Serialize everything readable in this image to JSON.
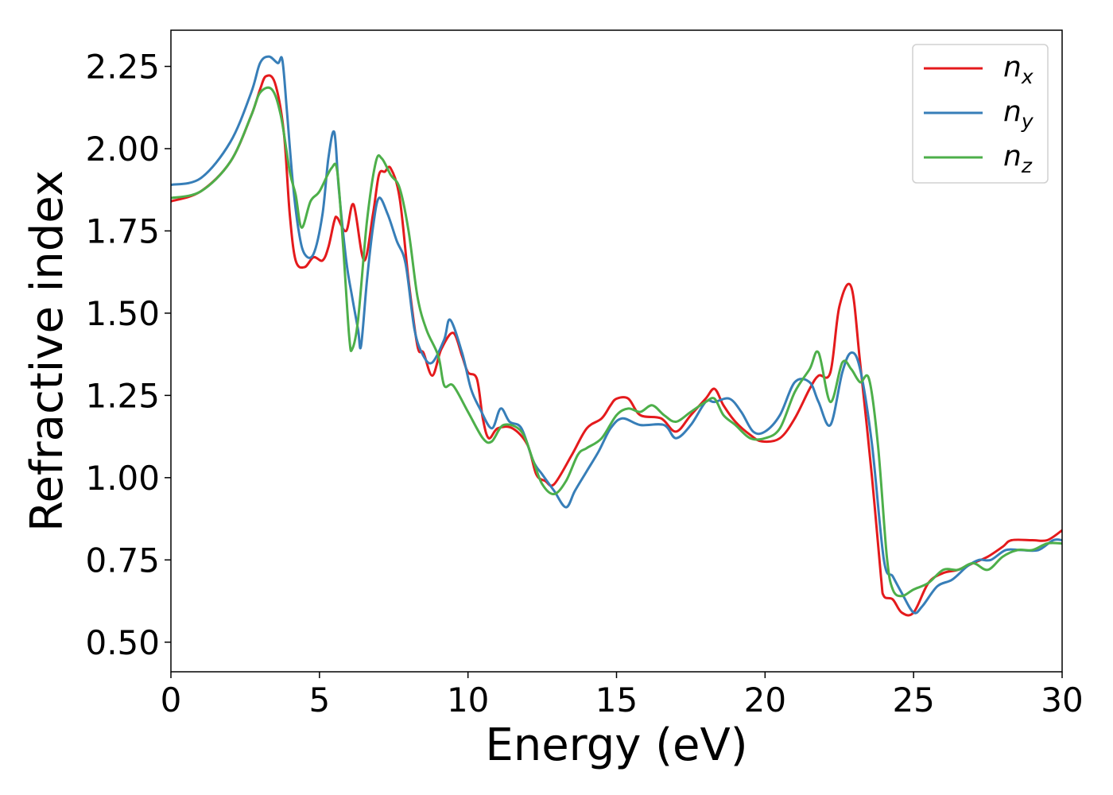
{
  "chart_data": {
    "type": "line",
    "xlabel": "Energy (eV)",
    "ylabel": "Refractive index",
    "xlim": [
      0,
      30
    ],
    "ylim": [
      0.41,
      2.36
    ],
    "xticks": [
      0,
      5,
      10,
      15,
      20,
      25,
      30
    ],
    "yticks": [
      0.5,
      0.75,
      1.0,
      1.25,
      1.5,
      1.75,
      2.0,
      2.25
    ],
    "ytick_labels": [
      "0.50",
      "0.75",
      "1.00",
      "1.25",
      "1.50",
      "1.75",
      "2.00",
      "2.25"
    ],
    "grid": false,
    "legend": {
      "position": "top-right",
      "entries": [
        {
          "base": "n",
          "sub": "x"
        },
        {
          "base": "n",
          "sub": "y"
        },
        {
          "base": "n",
          "sub": "z"
        }
      ]
    },
    "series": [
      {
        "color": "#e41a1c",
        "points": [
          [
            0,
            1.84
          ],
          [
            1,
            1.87
          ],
          [
            2,
            1.96
          ],
          [
            2.7,
            2.1
          ],
          [
            3,
            2.18
          ],
          [
            3.2,
            2.22
          ],
          [
            3.5,
            2.2
          ],
          [
            3.8,
            2.05
          ],
          [
            4,
            1.8
          ],
          [
            4.2,
            1.66
          ],
          [
            4.5,
            1.64
          ],
          [
            4.8,
            1.67
          ],
          [
            5.1,
            1.66
          ],
          [
            5.3,
            1.7
          ],
          [
            5.5,
            1.78
          ],
          [
            5.6,
            1.79
          ],
          [
            5.9,
            1.75
          ],
          [
            6.15,
            1.83
          ],
          [
            6.5,
            1.66
          ],
          [
            6.8,
            1.8
          ],
          [
            7,
            1.92
          ],
          [
            7.2,
            1.93
          ],
          [
            7.4,
            1.94
          ],
          [
            7.7,
            1.85
          ],
          [
            8,
            1.6
          ],
          [
            8.3,
            1.4
          ],
          [
            8.5,
            1.38
          ],
          [
            8.8,
            1.31
          ],
          [
            9.1,
            1.39
          ],
          [
            9.5,
            1.44
          ],
          [
            9.8,
            1.37
          ],
          [
            10,
            1.32
          ],
          [
            10.3,
            1.3
          ],
          [
            10.5,
            1.18
          ],
          [
            10.7,
            1.12
          ],
          [
            11,
            1.15
          ],
          [
            11.5,
            1.15
          ],
          [
            12,
            1.1
          ],
          [
            12.3,
            1.01
          ],
          [
            12.6,
            0.99
          ],
          [
            12.9,
            0.98
          ],
          [
            13.5,
            1.07
          ],
          [
            14,
            1.15
          ],
          [
            14.5,
            1.18
          ],
          [
            14.8,
            1.22
          ],
          [
            15,
            1.24
          ],
          [
            15.4,
            1.24
          ],
          [
            15.8,
            1.19
          ],
          [
            16.5,
            1.18
          ],
          [
            17,
            1.14
          ],
          [
            17.5,
            1.19
          ],
          [
            18,
            1.24
          ],
          [
            18.3,
            1.27
          ],
          [
            18.6,
            1.22
          ],
          [
            19,
            1.17
          ],
          [
            19.5,
            1.13
          ],
          [
            19.9,
            1.11
          ],
          [
            20.5,
            1.12
          ],
          [
            21,
            1.18
          ],
          [
            21.5,
            1.27
          ],
          [
            21.8,
            1.31
          ],
          [
            22.2,
            1.32
          ],
          [
            22.5,
            1.52
          ],
          [
            22.9,
            1.58
          ],
          [
            23.2,
            1.35
          ],
          [
            23.6,
            1.0
          ],
          [
            23.9,
            0.7
          ],
          [
            24,
            0.64
          ],
          [
            24.3,
            0.63
          ],
          [
            24.6,
            0.59
          ],
          [
            25,
            0.59
          ],
          [
            25.5,
            0.68
          ],
          [
            26,
            0.71
          ],
          [
            26.5,
            0.72
          ],
          [
            27,
            0.74
          ],
          [
            27.5,
            0.76
          ],
          [
            28,
            0.79
          ],
          [
            28.3,
            0.81
          ],
          [
            29,
            0.81
          ],
          [
            29.5,
            0.81
          ],
          [
            30,
            0.84
          ]
        ]
      },
      {
        "color": "#377eb8",
        "points": [
          [
            0,
            1.89
          ],
          [
            1,
            1.91
          ],
          [
            2,
            2.02
          ],
          [
            2.7,
            2.17
          ],
          [
            3,
            2.26
          ],
          [
            3.3,
            2.28
          ],
          [
            3.6,
            2.26
          ],
          [
            3.75,
            2.27
          ],
          [
            3.9,
            2.12
          ],
          [
            4.1,
            1.9
          ],
          [
            4.3,
            1.75
          ],
          [
            4.5,
            1.68
          ],
          [
            4.8,
            1.68
          ],
          [
            5.1,
            1.8
          ],
          [
            5.3,
            1.97
          ],
          [
            5.5,
            2.05
          ],
          [
            5.65,
            1.88
          ],
          [
            5.9,
            1.66
          ],
          [
            6.1,
            1.55
          ],
          [
            6.3,
            1.45
          ],
          [
            6.4,
            1.4
          ],
          [
            6.6,
            1.6
          ],
          [
            6.8,
            1.76
          ],
          [
            7,
            1.85
          ],
          [
            7.3,
            1.8
          ],
          [
            7.6,
            1.72
          ],
          [
            7.9,
            1.65
          ],
          [
            8.2,
            1.45
          ],
          [
            8.5,
            1.37
          ],
          [
            8.8,
            1.35
          ],
          [
            9.2,
            1.42
          ],
          [
            9.4,
            1.48
          ],
          [
            9.8,
            1.38
          ],
          [
            10.1,
            1.27
          ],
          [
            10.4,
            1.21
          ],
          [
            10.8,
            1.15
          ],
          [
            11.1,
            1.21
          ],
          [
            11.4,
            1.17
          ],
          [
            11.8,
            1.15
          ],
          [
            12.2,
            1.05
          ],
          [
            12.5,
            1.01
          ],
          [
            12.9,
            0.96
          ],
          [
            13.3,
            0.91
          ],
          [
            13.6,
            0.96
          ],
          [
            14,
            1.02
          ],
          [
            14.4,
            1.08
          ],
          [
            14.8,
            1.15
          ],
          [
            15.2,
            1.18
          ],
          [
            15.8,
            1.16
          ],
          [
            16.6,
            1.16
          ],
          [
            17,
            1.12
          ],
          [
            17.5,
            1.16
          ],
          [
            18,
            1.23
          ],
          [
            18.3,
            1.23
          ],
          [
            18.8,
            1.24
          ],
          [
            19.2,
            1.2
          ],
          [
            19.6,
            1.14
          ],
          [
            20,
            1.14
          ],
          [
            20.5,
            1.19
          ],
          [
            21,
            1.29
          ],
          [
            21.5,
            1.29
          ],
          [
            21.8,
            1.23
          ],
          [
            22.2,
            1.16
          ],
          [
            22.6,
            1.32
          ],
          [
            22.9,
            1.38
          ],
          [
            23.2,
            1.33
          ],
          [
            23.6,
            1.1
          ],
          [
            24,
            0.75
          ],
          [
            24.3,
            0.7
          ],
          [
            24.6,
            0.65
          ],
          [
            25,
            0.59
          ],
          [
            25.3,
            0.61
          ],
          [
            25.8,
            0.67
          ],
          [
            26.3,
            0.69
          ],
          [
            26.8,
            0.73
          ],
          [
            27.2,
            0.75
          ],
          [
            27.6,
            0.75
          ],
          [
            28.1,
            0.78
          ],
          [
            28.6,
            0.78
          ],
          [
            29.2,
            0.78
          ],
          [
            29.7,
            0.81
          ],
          [
            30,
            0.81
          ]
        ]
      },
      {
        "color": "#4daf4a",
        "points": [
          [
            0,
            1.85
          ],
          [
            1,
            1.87
          ],
          [
            2,
            1.96
          ],
          [
            2.7,
            2.1
          ],
          [
            3,
            2.17
          ],
          [
            3.4,
            2.18
          ],
          [
            3.7,
            2.1
          ],
          [
            4,
            1.93
          ],
          [
            4.2,
            1.86
          ],
          [
            4.4,
            1.76
          ],
          [
            4.7,
            1.84
          ],
          [
            5,
            1.87
          ],
          [
            5.4,
            1.94
          ],
          [
            5.6,
            1.93
          ],
          [
            5.8,
            1.7
          ],
          [
            6,
            1.43
          ],
          [
            6.1,
            1.39
          ],
          [
            6.3,
            1.48
          ],
          [
            6.6,
            1.78
          ],
          [
            6.9,
            1.96
          ],
          [
            7.1,
            1.97
          ],
          [
            7.4,
            1.92
          ],
          [
            7.7,
            1.88
          ],
          [
            8,
            1.75
          ],
          [
            8.3,
            1.55
          ],
          [
            8.6,
            1.45
          ],
          [
            9,
            1.37
          ],
          [
            9.2,
            1.28
          ],
          [
            9.5,
            1.28
          ],
          [
            10,
            1.2
          ],
          [
            10.5,
            1.12
          ],
          [
            10.8,
            1.11
          ],
          [
            11.2,
            1.16
          ],
          [
            11.8,
            1.14
          ],
          [
            12.2,
            1.05
          ],
          [
            12.5,
            0.98
          ],
          [
            12.9,
            0.95
          ],
          [
            13.3,
            0.99
          ],
          [
            13.7,
            1.07
          ],
          [
            14,
            1.09
          ],
          [
            14.5,
            1.12
          ],
          [
            15,
            1.19
          ],
          [
            15.4,
            1.21
          ],
          [
            15.8,
            1.2
          ],
          [
            16.2,
            1.22
          ],
          [
            16.6,
            1.19
          ],
          [
            17,
            1.17
          ],
          [
            17.5,
            1.2
          ],
          [
            18,
            1.23
          ],
          [
            18.3,
            1.24
          ],
          [
            18.6,
            1.19
          ],
          [
            19,
            1.16
          ],
          [
            19.5,
            1.12
          ],
          [
            20,
            1.12
          ],
          [
            20.5,
            1.15
          ],
          [
            21,
            1.26
          ],
          [
            21.5,
            1.33
          ],
          [
            21.8,
            1.38
          ],
          [
            22.2,
            1.23
          ],
          [
            22.6,
            1.35
          ],
          [
            22.9,
            1.33
          ],
          [
            23.2,
            1.29
          ],
          [
            23.5,
            1.3
          ],
          [
            23.8,
            1.1
          ],
          [
            24.1,
            0.76
          ],
          [
            24.3,
            0.66
          ],
          [
            24.6,
            0.64
          ],
          [
            25,
            0.66
          ],
          [
            25.5,
            0.68
          ],
          [
            26,
            0.72
          ],
          [
            26.5,
            0.72
          ],
          [
            27,
            0.74
          ],
          [
            27.5,
            0.72
          ],
          [
            28,
            0.76
          ],
          [
            28.5,
            0.78
          ],
          [
            29,
            0.78
          ],
          [
            29.5,
            0.8
          ],
          [
            30,
            0.8
          ]
        ]
      }
    ]
  }
}
